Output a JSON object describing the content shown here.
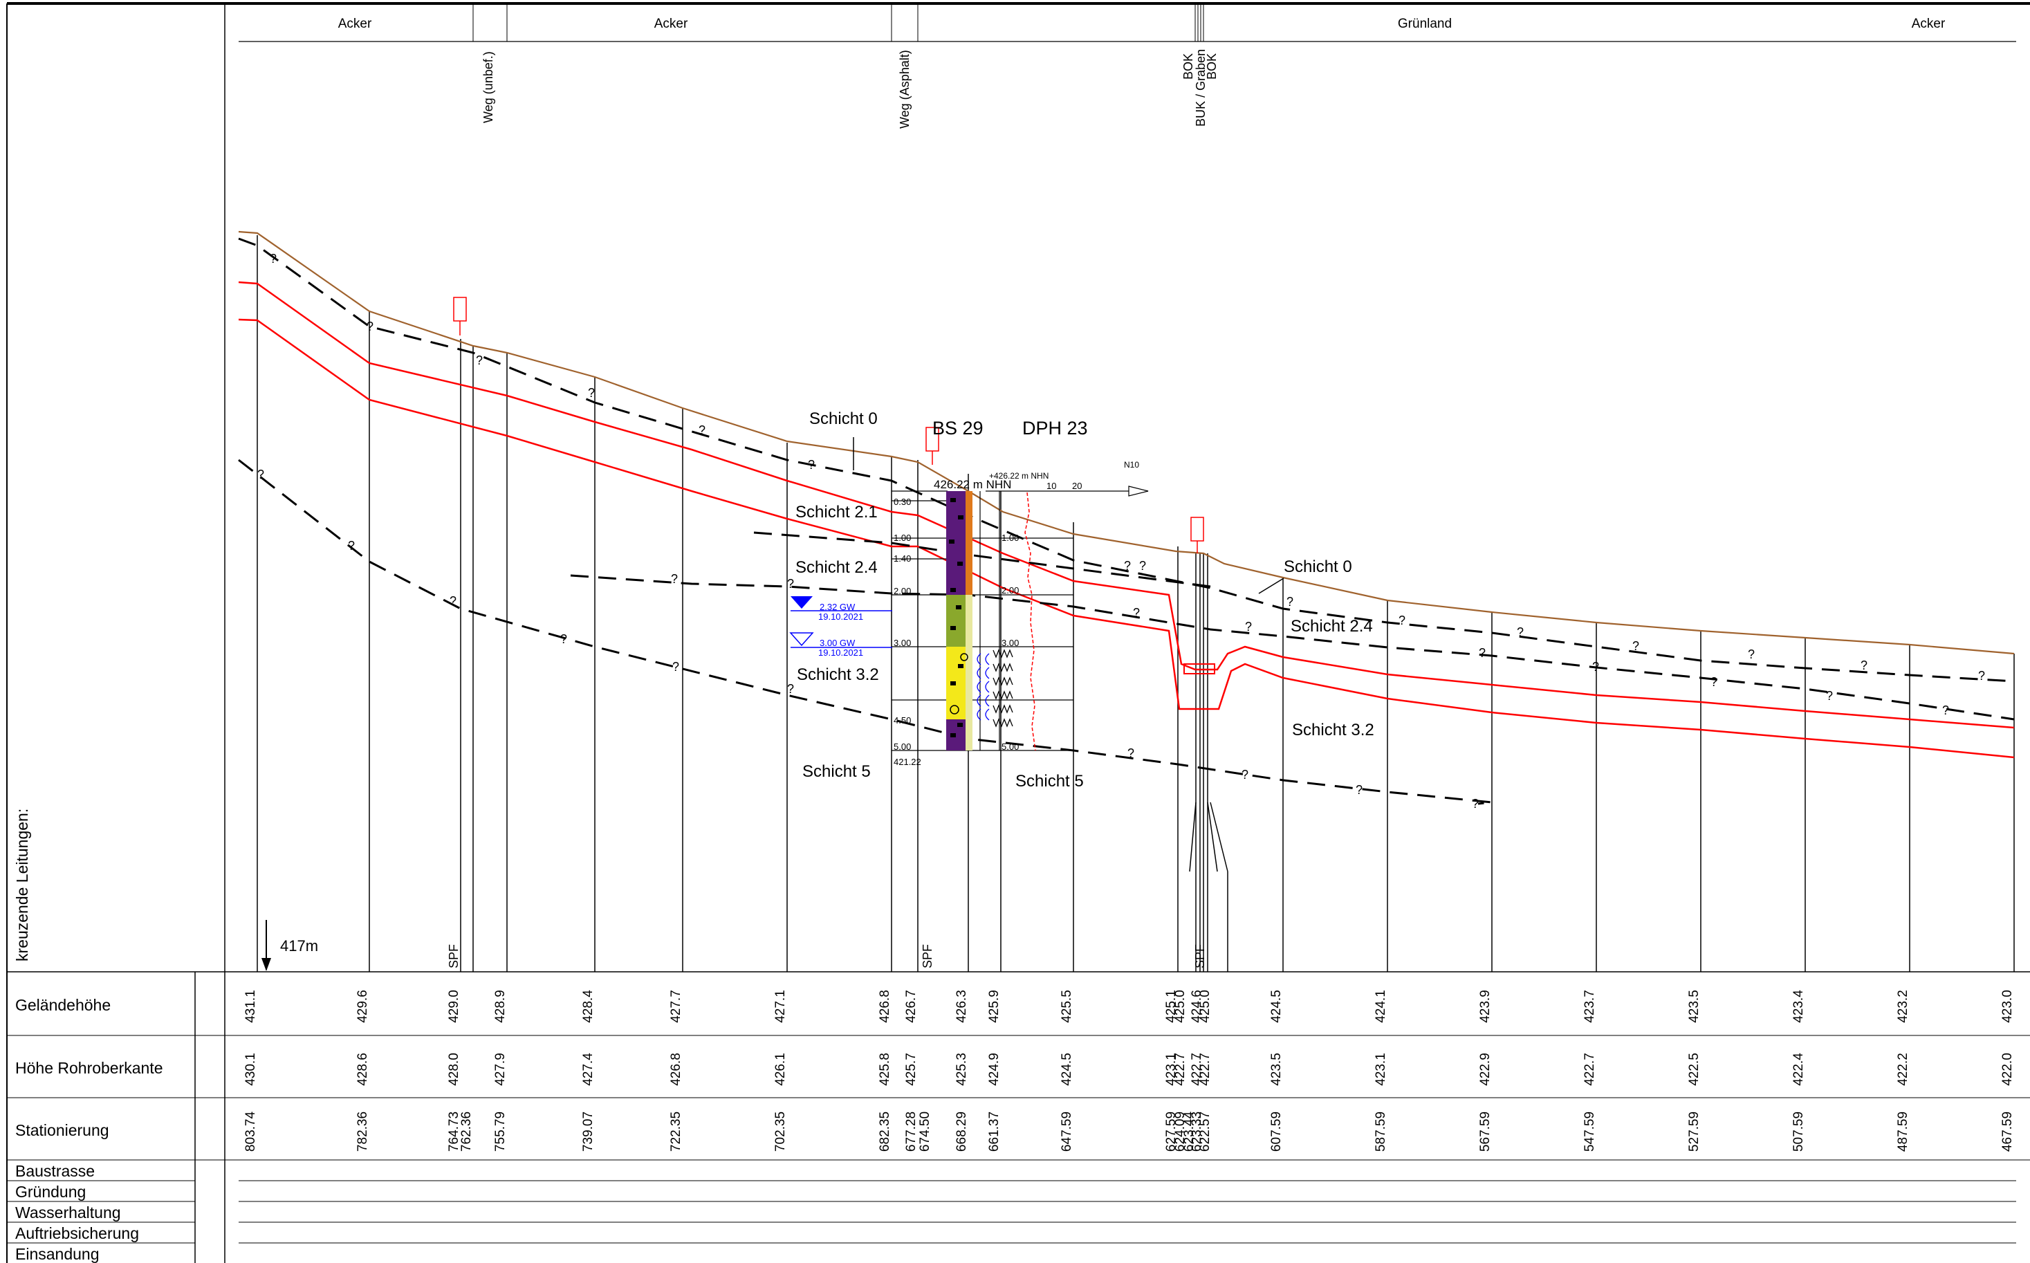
{
  "top_band": [
    {
      "label": "Acker"
    },
    {
      "label": "Acker"
    },
    {
      "label": "Grünland"
    },
    {
      "label": "Acker"
    }
  ],
  "left_label": "kreuzende Leitungen:",
  "row_labels": {
    "gelaendehoehe": "Geländehöhe",
    "rohroberkante": "Höhe Rohroberkante",
    "stationierung": "Stationierung",
    "baustrasse": "Baustrasse",
    "gruendung": "Gründung",
    "wasserhaltung": "Wasserhaltung",
    "auftriebsicherung": "Auftriebsicherung",
    "einsandung": "Einsandung"
  },
  "depth_label": "417m",
  "features": {
    "weg_unbef": "Weg (unbef.)",
    "weg_asphalt": "Weg (Asphalt)",
    "bok": "BOK",
    "buk_graben": "BUK / Graben",
    "bok2": "BOK",
    "spf": "SPF"
  },
  "layers": {
    "schicht_0": "Schicht 0",
    "schicht_2_1": "Schicht 2.1",
    "schicht_2_4": "Schicht 2.4",
    "schicht_3_2": "Schicht 3.2",
    "schicht_5": "Schicht 5",
    "q": "?"
  },
  "borehole": {
    "title": "BS 29",
    "dph_title": "DPH 23",
    "elev": "426.22 m NHN",
    "elev2": "+426.22 m NHN",
    "bottom": "421.22",
    "depths": [
      "0.30",
      "1.00",
      "1.40",
      "2.00",
      "3.00",
      "4.50",
      "5.00"
    ],
    "dph_depths": [
      "1.00",
      "2.00",
      "3.00",
      "5.00"
    ],
    "gw1": "2.32 GW",
    "gw1_date": "19.10.2021",
    "gw2": "3.00 GW",
    "gw2_date": "19.10.2021",
    "axis_label": "N10",
    "axis_ticks": [
      "10",
      "20"
    ]
  },
  "table": {
    "stations": [
      {
        "g": "431.1",
        "r": "430.1",
        "s": "803.74"
      },
      {
        "g": "429.6",
        "r": "428.6",
        "s": "782.36"
      },
      {
        "g": "429.0",
        "r": "428.0",
        "s": "764.73"
      },
      {
        "g": "",
        "r": "",
        "s": "762.36"
      },
      {
        "g": "428.9",
        "r": "427.9",
        "s": "755.79"
      },
      {
        "g": "428.4",
        "r": "427.4",
        "s": "739.07"
      },
      {
        "g": "427.7",
        "r": "426.8",
        "s": "722.35"
      },
      {
        "g": "427.1",
        "r": "426.1",
        "s": "702.35"
      },
      {
        "g": "426.8",
        "r": "425.8",
        "s": "682.35"
      },
      {
        "g": "426.7",
        "r": "425.7",
        "s": "677.28"
      },
      {
        "g": "",
        "r": "",
        "s": "674.50"
      },
      {
        "g": "426.3",
        "r": "425.3",
        "s": "668.29"
      },
      {
        "g": "425.9",
        "r": "424.9",
        "s": "661.37"
      },
      {
        "g": "425.5",
        "r": "424.5",
        "s": "647.59"
      },
      {
        "g": "425.1",
        "r": "423.1",
        "s": "627.59"
      },
      {
        "g": "425.0",
        "r": "422.7",
        "s": "624.09"
      },
      {
        "g": "",
        "r": "",
        "s": "623.44"
      },
      {
        "g": "424.6",
        "r": "422.7",
        "s": "623.33"
      },
      {
        "g": "425.0",
        "r": "422.7",
        "s": "622.57"
      },
      {
        "g": "424.5",
        "r": "423.5",
        "s": "607.59"
      },
      {
        "g": "424.1",
        "r": "423.1",
        "s": "587.59"
      },
      {
        "g": "423.9",
        "r": "422.9",
        "s": "567.59"
      },
      {
        "g": "423.7",
        "r": "422.7",
        "s": "547.59"
      },
      {
        "g": "423.5",
        "r": "422.5",
        "s": "527.59"
      },
      {
        "g": "423.4",
        "r": "422.4",
        "s": "507.59"
      },
      {
        "g": "423.2",
        "r": "422.2",
        "s": "487.59"
      },
      {
        "g": "423.0",
        "r": "422.0",
        "s": "467.59"
      }
    ]
  },
  "colors": {
    "terrain": "#a0622d",
    "pipe": "#ff0000",
    "groundwater": "#0000ff",
    "dark": "#000000"
  }
}
